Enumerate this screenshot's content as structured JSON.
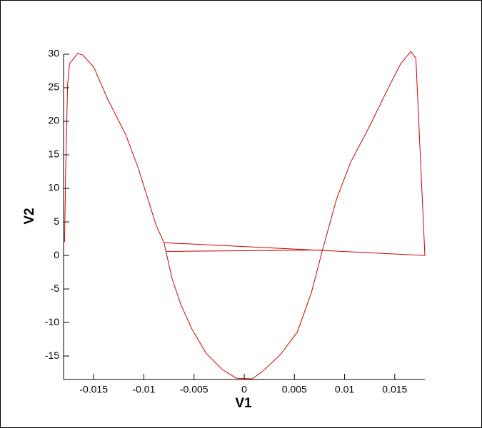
{
  "chart_data": {
    "type": "line",
    "xlabel": "V1",
    "ylabel": "V2",
    "xlim": [
      -0.018,
      0.018
    ],
    "ylim": [
      -18.5,
      30
    ],
    "xticks": [
      -0.015,
      -0.01,
      -0.005,
      0,
      0.005,
      0.01,
      0.015
    ],
    "yticks": [
      -15,
      -10,
      -5,
      0,
      5,
      10,
      15,
      20,
      25,
      30
    ],
    "grid": false,
    "series": [
      {
        "color": "#cc0000",
        "x": [
          -0.0179,
          -0.0178,
          -0.0176,
          -0.0174,
          -0.0166,
          -0.0161,
          -0.015,
          -0.0136,
          -0.0118,
          -0.0106,
          -0.0097,
          -0.0088,
          -0.008,
          -0.0078,
          -0.0072,
          -0.0063,
          -0.0052,
          -0.0038,
          -0.0022,
          -0.0008,
          0.0008,
          0.0019,
          0.0036,
          0.0053,
          0.0067,
          0.0078,
          0.0092,
          0.0106,
          0.0124,
          0.0145,
          0.0156,
          0.0166,
          0.0171,
          0.018,
          -0.008,
          -0.0078,
          0.0078
        ],
        "values": [
          2.0,
          11.6,
          25.4,
          28.6,
          30.1,
          29.9,
          28.1,
          23.3,
          18.0,
          13.2,
          8.9,
          4.6,
          1.9,
          0.6,
          -3.4,
          -7.4,
          -11.0,
          -14.6,
          -17.0,
          -18.3,
          -18.4,
          -17.2,
          -14.8,
          -11.4,
          -5.5,
          0.8,
          8.4,
          13.9,
          19.0,
          25.4,
          28.6,
          30.4,
          29.4,
          0.0,
          1.9,
          0.6,
          0.8
        ]
      }
    ]
  }
}
